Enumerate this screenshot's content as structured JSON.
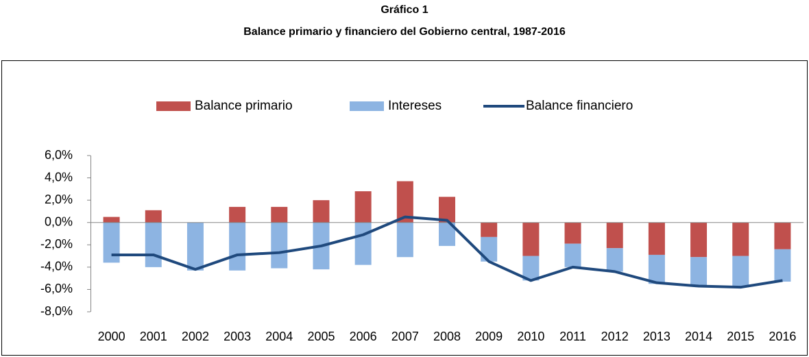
{
  "chart_data": {
    "type": "bar_line",
    "title": "Gráfico 1",
    "subtitle": "Balance primario y financiero del Gobierno central, 1987-2016",
    "categories": [
      "2000",
      "2001",
      "2002",
      "2003",
      "2004",
      "2005",
      "2006",
      "2007",
      "2008",
      "2009",
      "2010",
      "2011",
      "2012",
      "2013",
      "2014",
      "2015",
      "2016"
    ],
    "series": [
      {
        "name": "Balance primario",
        "type": "bar",
        "color": "#c0504d",
        "values": [
          0.5,
          1.1,
          0.0,
          1.4,
          1.4,
          2.0,
          2.8,
          3.7,
          2.3,
          -1.3,
          -3.0,
          -1.9,
          -2.3,
          -2.9,
          -3.1,
          -3.0,
          -2.4
        ]
      },
      {
        "name": "Intereses",
        "type": "bar",
        "color": "#8db4e2",
        "values": [
          -3.6,
          -4.0,
          -4.3,
          -4.3,
          -4.1,
          -4.2,
          -3.8,
          -3.1,
          -2.1,
          -2.2,
          -2.2,
          -2.1,
          -2.1,
          -2.6,
          -2.6,
          -2.8,
          -2.9
        ]
      },
      {
        "name": "Balance financiero",
        "type": "line",
        "color": "#1f497d",
        "values": [
          -2.9,
          -2.9,
          -4.2,
          -2.9,
          -2.7,
          -2.1,
          -1.1,
          0.5,
          0.2,
          -3.5,
          -5.2,
          -4.0,
          -4.4,
          -5.4,
          -5.7,
          -5.8,
          -5.2
        ]
      }
    ],
    "ylim": [
      -8,
      6
    ],
    "yticks": [
      {
        "value": -8,
        "label": "-8,0%"
      },
      {
        "value": -6,
        "label": "-6,0%"
      },
      {
        "value": -4,
        "label": "-4,0%"
      },
      {
        "value": -2,
        "label": "-2,0%"
      },
      {
        "value": 0,
        "label": "0,0%"
      },
      {
        "value": 2,
        "label": "2,0%"
      },
      {
        "value": 4,
        "label": "4,0%"
      },
      {
        "value": 6,
        "label": "6,0%"
      }
    ],
    "legend": "top",
    "grid": false
  }
}
